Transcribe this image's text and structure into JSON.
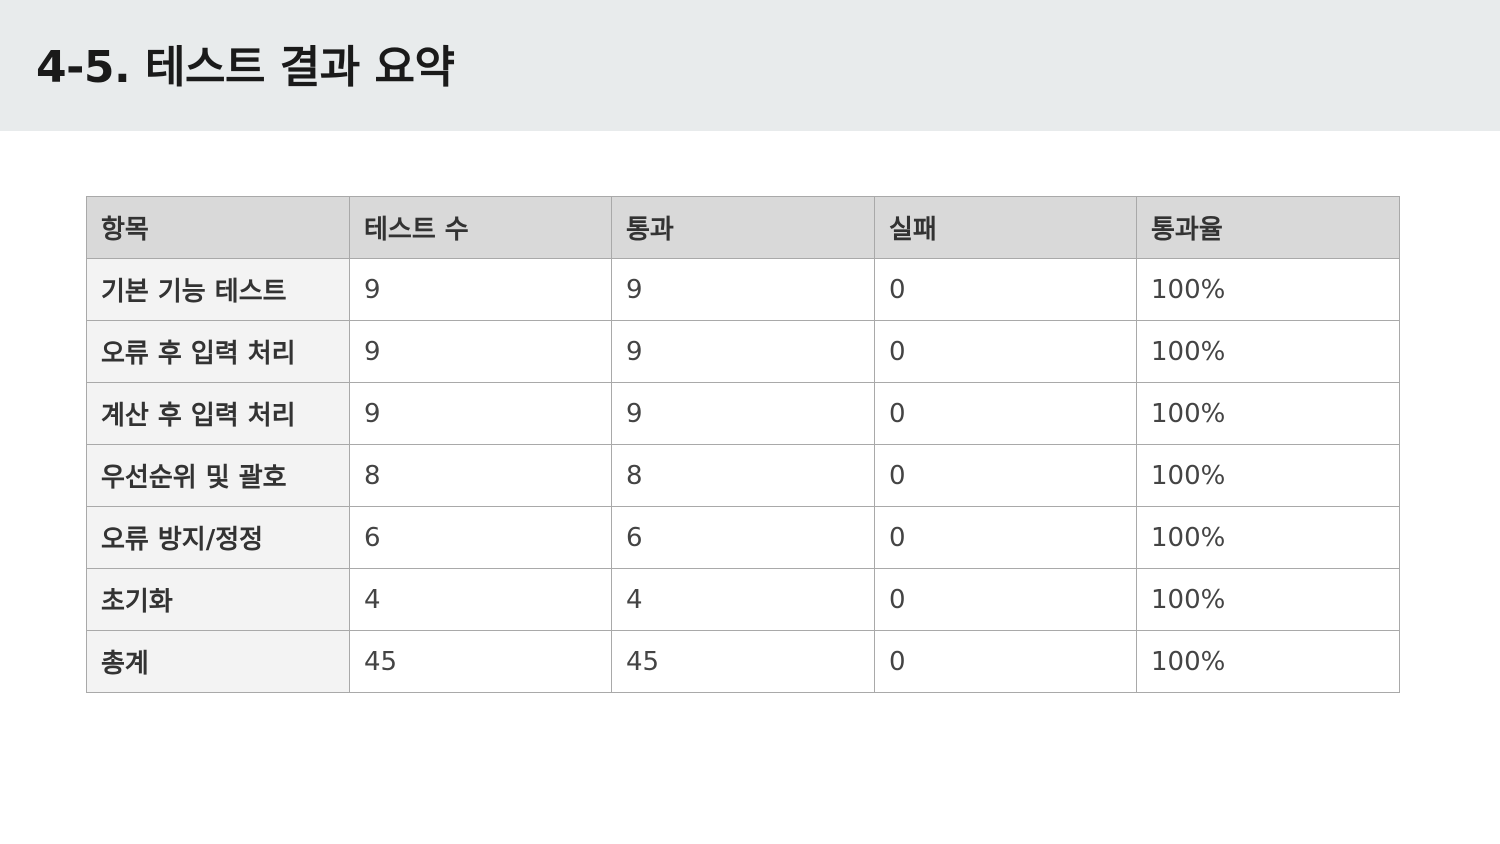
{
  "title": "4-5. 테스트 결과 요약",
  "table": {
    "headers": [
      "항목",
      "테스트 수",
      "통과",
      "실패",
      "통과율"
    ],
    "rows": [
      [
        "기본 기능 테스트",
        "9",
        "9",
        "0",
        "100%"
      ],
      [
        "오류 후 입력 처리",
        "9",
        "9",
        "0",
        "100%"
      ],
      [
        "계산 후 입력 처리",
        "9",
        "9",
        "0",
        "100%"
      ],
      [
        "우선순위 및 괄호",
        "8",
        "8",
        "0",
        "100%"
      ],
      [
        "오류 방지/정정",
        "6",
        "6",
        "0",
        "100%"
      ],
      [
        "초기화",
        "4",
        "4",
        "0",
        "100%"
      ],
      [
        "총계",
        "45",
        "45",
        "0",
        "100%"
      ]
    ]
  },
  "colors": {
    "header_band": "#e8ebec",
    "table_header_bg": "#d9d9d9",
    "row_label_bg": "#f3f3f3",
    "border": "#a9a9a9"
  }
}
